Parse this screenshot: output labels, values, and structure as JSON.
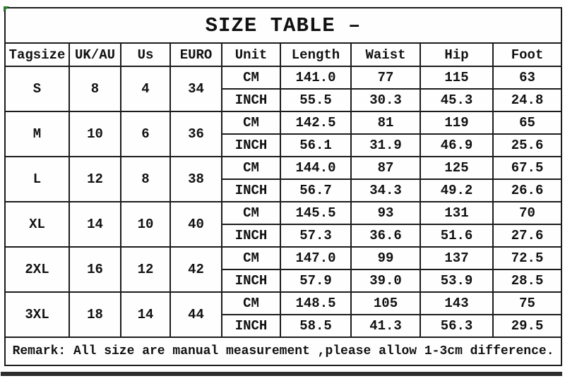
{
  "title": "SIZE TABLE –",
  "headers": [
    "Tagsize",
    "UK/AU",
    "Us",
    "EURO",
    "Unit",
    "Length",
    "Waist",
    "Hip",
    "Foot"
  ],
  "unit_labels": {
    "cm": "CM",
    "inch": "INCH"
  },
  "sizes": [
    {
      "tagsize": "S",
      "uk_au": "8",
      "us": "4",
      "euro": "34",
      "cm": {
        "length": "141.0",
        "waist": "77",
        "hip": "115",
        "foot": "63"
      },
      "inch": {
        "length": "55.5",
        "waist": "30.3",
        "hip": "45.3",
        "foot": "24.8"
      }
    },
    {
      "tagsize": "M",
      "uk_au": "10",
      "us": "6",
      "euro": "36",
      "cm": {
        "length": "142.5",
        "waist": "81",
        "hip": "119",
        "foot": "65"
      },
      "inch": {
        "length": "56.1",
        "waist": "31.9",
        "hip": "46.9",
        "foot": "25.6"
      }
    },
    {
      "tagsize": "L",
      "uk_au": "12",
      "us": "8",
      "euro": "38",
      "cm": {
        "length": "144.0",
        "waist": "87",
        "hip": "125",
        "foot": "67.5"
      },
      "inch": {
        "length": "56.7",
        "waist": "34.3",
        "hip": "49.2",
        "foot": "26.6"
      }
    },
    {
      "tagsize": "XL",
      "uk_au": "14",
      "us": "10",
      "euro": "40",
      "cm": {
        "length": "145.5",
        "waist": "93",
        "hip": "131",
        "foot": "70"
      },
      "inch": {
        "length": "57.3",
        "waist": "36.6",
        "hip": "51.6",
        "foot": "27.6"
      }
    },
    {
      "tagsize": "2XL",
      "uk_au": "16",
      "us": "12",
      "euro": "42",
      "cm": {
        "length": "147.0",
        "waist": "99",
        "hip": "137",
        "foot": "72.5"
      },
      "inch": {
        "length": "57.9",
        "waist": "39.0",
        "hip": "53.9",
        "foot": "28.5"
      }
    },
    {
      "tagsize": "3XL",
      "uk_au": "18",
      "us": "14",
      "euro": "44",
      "cm": {
        "length": "148.5",
        "waist": "105",
        "hip": "143",
        "foot": "75"
      },
      "inch": {
        "length": "58.5",
        "waist": "41.3",
        "hip": "56.3",
        "foot": "29.5"
      }
    }
  ],
  "remark": "Remark: All size are manual measurement ,please allow 1-3cm difference.",
  "colors": {
    "border": "#1c1c1c",
    "text": "#111111",
    "background": "#ffffff",
    "corner_mark_green": "#2e7d32",
    "bottom_bar": "#2d2d2d"
  }
}
